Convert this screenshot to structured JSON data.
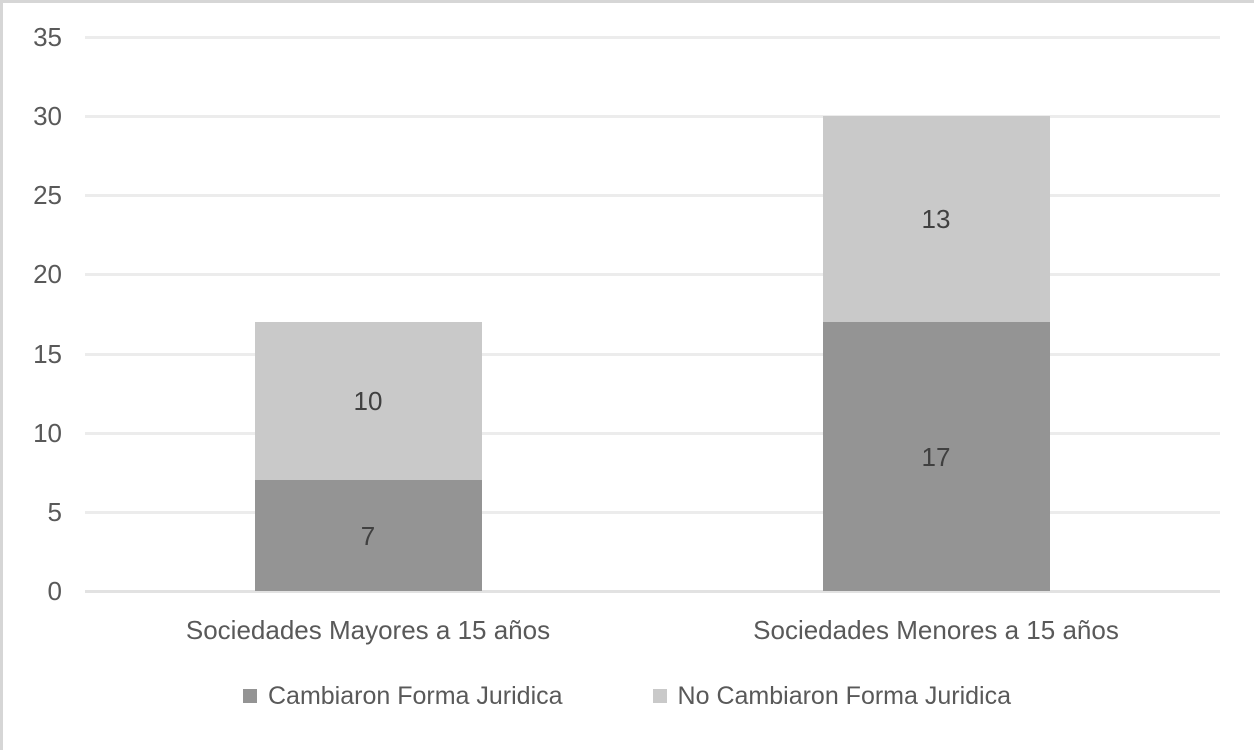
{
  "chart_data": {
    "type": "bar",
    "stacked": true,
    "title": "",
    "xlabel": "",
    "ylabel": "",
    "categories": [
      "Sociedades Mayores a 15 años",
      "Sociedades Menores a 15 años"
    ],
    "series": [
      {
        "name": "Cambiaron Forma Juridica",
        "values": [
          7,
          17
        ],
        "color": "#949494"
      },
      {
        "name": "No Cambiaron Forma Juridica",
        "values": [
          10,
          13
        ],
        "color": "#c9c9c9"
      }
    ],
    "totals": [
      17,
      30
    ],
    "ylim": [
      0,
      35
    ],
    "yticks": [
      0,
      5,
      10,
      15,
      20,
      25,
      30,
      35
    ],
    "grid": true,
    "data_labels": true,
    "legend_position": "bottom"
  },
  "style": {
    "gridline_color": "#ececec",
    "zero_line_color": "#e2e2e2",
    "tick_text_color": "#595959",
    "data_label_color": "#404040",
    "frame_border_color": "#d6d6d6",
    "background_color": "#ffffff"
  }
}
